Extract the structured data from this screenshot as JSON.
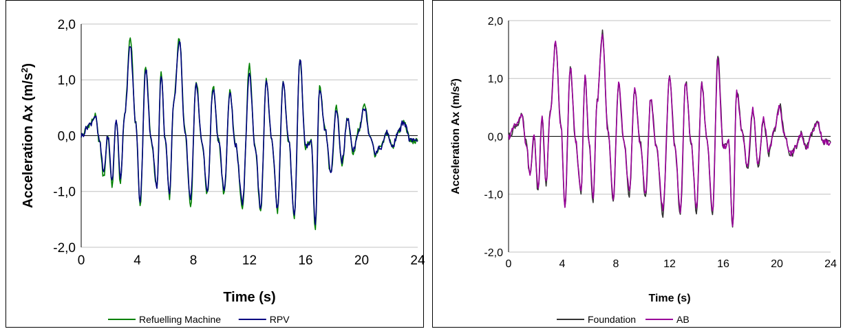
{
  "chart_data": [
    {
      "type": "line",
      "title": "",
      "xlabel": "Time (s)",
      "ylabel": "Acceleration Ax (m/s²)",
      "ylabel_parts": {
        "base": "Acceleration Ax (m/s",
        "sup": "2",
        "end": ")"
      },
      "xlim": [
        0,
        24
      ],
      "ylim": [
        -2.0,
        2.0
      ],
      "xticks": [
        "0",
        "4",
        "8",
        "12",
        "16",
        "20",
        "24"
      ],
      "yticks": [
        "2,0",
        "1,0",
        "0,0",
        "-1,0",
        "-2,0"
      ],
      "grid": true,
      "legend_position": "bottom",
      "series": [
        {
          "name": "Refuelling Machine",
          "color": "#008000",
          "x": [
            0,
            0.6,
            1.0,
            1.3,
            1.6,
            1.9,
            2.2,
            2.5,
            2.8,
            3.1,
            3.5,
            3.9,
            4.2,
            4.6,
            5.0,
            5.4,
            5.7,
            6.0,
            6.3,
            6.6,
            7.0,
            7.4,
            7.8,
            8.2,
            8.6,
            9.0,
            9.4,
            9.8,
            10.2,
            10.6,
            11.0,
            11.5,
            12.0,
            12.4,
            12.8,
            13.2,
            13.6,
            14.0,
            14.4,
            14.8,
            15.2,
            15.6,
            16.0,
            16.4,
            16.7,
            17.0,
            17.4,
            17.8,
            18.2,
            18.6,
            19.0,
            19.4,
            19.8,
            20.2,
            20.6,
            21.0,
            21.4,
            21.8,
            22.2,
            22.6,
            23.0,
            23.5,
            24.0
          ],
          "y": [
            0.0,
            0.2,
            0.35,
            -0.1,
            -0.75,
            0.0,
            -0.9,
            0.3,
            -0.85,
            0.4,
            1.75,
            0.2,
            -1.25,
            1.25,
            -0.1,
            -0.95,
            1.15,
            -0.1,
            -1.1,
            0.6,
            1.75,
            0.1,
            -1.25,
            1.0,
            -0.1,
            -1.05,
            0.9,
            -0.1,
            -1.05,
            0.8,
            -0.15,
            -1.3,
            1.25,
            -0.2,
            -1.4,
            1.0,
            -0.1,
            -1.35,
            1.0,
            -0.1,
            -1.45,
            1.4,
            -0.2,
            -0.1,
            -1.7,
            0.9,
            0.1,
            -0.7,
            0.5,
            -0.5,
            0.3,
            -0.3,
            0.1,
            0.55,
            0.0,
            -0.35,
            -0.2,
            0.05,
            -0.2,
            0.05,
            0.25,
            -0.1,
            -0.1
          ]
        },
        {
          "name": "RPV",
          "color": "#000080",
          "x": [
            0,
            0.6,
            1.0,
            1.3,
            1.6,
            1.9,
            2.2,
            2.5,
            2.8,
            3.1,
            3.5,
            3.9,
            4.2,
            4.6,
            5.0,
            5.4,
            5.7,
            6.0,
            6.3,
            6.6,
            7.0,
            7.4,
            7.8,
            8.2,
            8.6,
            9.0,
            9.4,
            9.8,
            10.2,
            10.6,
            11.0,
            11.5,
            12.0,
            12.4,
            12.8,
            13.2,
            13.6,
            14.0,
            14.4,
            14.8,
            15.2,
            15.6,
            16.0,
            16.4,
            16.7,
            17.0,
            17.4,
            17.8,
            18.2,
            18.6,
            19.0,
            19.4,
            19.8,
            20.2,
            20.6,
            21.0,
            21.4,
            21.8,
            22.2,
            22.6,
            23.0,
            23.5,
            24.0
          ],
          "y": [
            0.0,
            0.2,
            0.35,
            -0.1,
            -0.65,
            0.0,
            -0.8,
            0.3,
            -0.75,
            0.4,
            1.6,
            0.2,
            -1.2,
            1.2,
            -0.1,
            -0.9,
            1.1,
            -0.1,
            -1.05,
            0.6,
            1.7,
            0.1,
            -1.15,
            0.95,
            -0.1,
            -1.0,
            0.85,
            -0.1,
            -1.0,
            0.75,
            -0.15,
            -1.2,
            1.1,
            -0.2,
            -1.3,
            0.95,
            -0.1,
            -1.3,
            0.95,
            -0.1,
            -1.4,
            1.4,
            -0.2,
            -0.1,
            -1.55,
            0.85,
            0.1,
            -0.65,
            0.45,
            -0.45,
            0.3,
            -0.25,
            0.1,
            0.5,
            0.0,
            -0.3,
            -0.2,
            0.05,
            -0.2,
            0.05,
            0.25,
            -0.1,
            -0.1
          ]
        }
      ]
    },
    {
      "type": "line",
      "title": "",
      "xlabel": "Time (s)",
      "ylabel": "Acceleration Ax (m/s²)",
      "ylabel_parts": {
        "base": "Acceleration Ax (m/s",
        "sup": "2",
        "end": ")"
      },
      "xlim": [
        0,
        24
      ],
      "ylim": [
        -2.0,
        2.0
      ],
      "xticks": [
        "0",
        "4",
        "8",
        "12",
        "16",
        "20",
        "24"
      ],
      "yticks": [
        "2,0",
        "1,0",
        "0,0",
        "-1,0",
        "-2,0"
      ],
      "grid": true,
      "legend_position": "bottom",
      "series": [
        {
          "name": "Foundation",
          "color": "#333333",
          "x": [
            0,
            0.6,
            1.0,
            1.3,
            1.6,
            1.9,
            2.2,
            2.5,
            2.8,
            3.1,
            3.5,
            3.9,
            4.2,
            4.6,
            5.0,
            5.4,
            5.7,
            6.0,
            6.3,
            6.6,
            7.0,
            7.4,
            7.8,
            8.2,
            8.6,
            9.0,
            9.4,
            9.8,
            10.2,
            10.6,
            11.0,
            11.5,
            12.0,
            12.4,
            12.8,
            13.2,
            13.6,
            14.0,
            14.4,
            14.8,
            15.2,
            15.6,
            16.0,
            16.4,
            16.7,
            17.0,
            17.4,
            17.8,
            18.2,
            18.6,
            19.0,
            19.4,
            19.8,
            20.2,
            20.6,
            21.0,
            21.4,
            21.8,
            22.2,
            22.6,
            23.0,
            23.5,
            24.0
          ],
          "y": [
            0.0,
            0.2,
            0.35,
            -0.1,
            -0.7,
            0.0,
            -0.95,
            0.3,
            -0.85,
            0.4,
            1.6,
            0.2,
            -1.2,
            1.2,
            -0.1,
            -1.0,
            1.05,
            -0.1,
            -1.15,
            0.6,
            1.8,
            0.1,
            -1.1,
            0.9,
            -0.1,
            -1.0,
            0.8,
            -0.1,
            -1.05,
            0.65,
            -0.15,
            -1.35,
            1.05,
            -0.2,
            -1.35,
            0.95,
            -0.1,
            -1.3,
            0.9,
            -0.1,
            -1.3,
            1.4,
            -0.2,
            -0.1,
            -1.55,
            0.8,
            0.1,
            -0.6,
            0.45,
            -0.55,
            0.3,
            -0.3,
            0.1,
            0.55,
            0.0,
            -0.35,
            -0.2,
            0.05,
            -0.2,
            0.05,
            0.25,
            -0.1,
            -0.1
          ]
        },
        {
          "name": "AB",
          "color": "#990099",
          "x": [
            0,
            0.6,
            1.0,
            1.3,
            1.6,
            1.9,
            2.2,
            2.5,
            2.8,
            3.1,
            3.5,
            3.9,
            4.2,
            4.6,
            5.0,
            5.4,
            5.7,
            6.0,
            6.3,
            6.6,
            7.0,
            7.4,
            7.8,
            8.2,
            8.6,
            9.0,
            9.4,
            9.8,
            10.2,
            10.6,
            11.0,
            11.5,
            12.0,
            12.4,
            12.8,
            13.2,
            13.6,
            14.0,
            14.4,
            14.8,
            15.2,
            15.6,
            16.0,
            16.4,
            16.7,
            17.0,
            17.4,
            17.8,
            18.2,
            18.6,
            19.0,
            19.4,
            19.8,
            20.2,
            20.6,
            21.0,
            21.4,
            21.8,
            22.2,
            22.6,
            23.0,
            23.5,
            24.0
          ],
          "y": [
            0.0,
            0.2,
            0.35,
            -0.1,
            -0.65,
            0.0,
            -0.9,
            0.3,
            -0.8,
            0.4,
            1.6,
            0.2,
            -1.2,
            1.2,
            -0.1,
            -0.95,
            1.05,
            -0.1,
            -1.1,
            0.6,
            1.75,
            0.1,
            -1.05,
            0.9,
            -0.1,
            -0.95,
            0.8,
            -0.1,
            -1.0,
            0.65,
            -0.15,
            -1.25,
            1.0,
            -0.2,
            -1.3,
            0.95,
            -0.1,
            -1.25,
            0.9,
            -0.1,
            -1.3,
            1.3,
            -0.2,
            -0.1,
            -1.6,
            0.75,
            0.1,
            -0.55,
            0.45,
            -0.5,
            0.3,
            -0.25,
            0.1,
            0.5,
            0.0,
            -0.3,
            -0.2,
            0.05,
            -0.2,
            0.05,
            0.25,
            -0.1,
            -0.1
          ]
        }
      ]
    }
  ]
}
